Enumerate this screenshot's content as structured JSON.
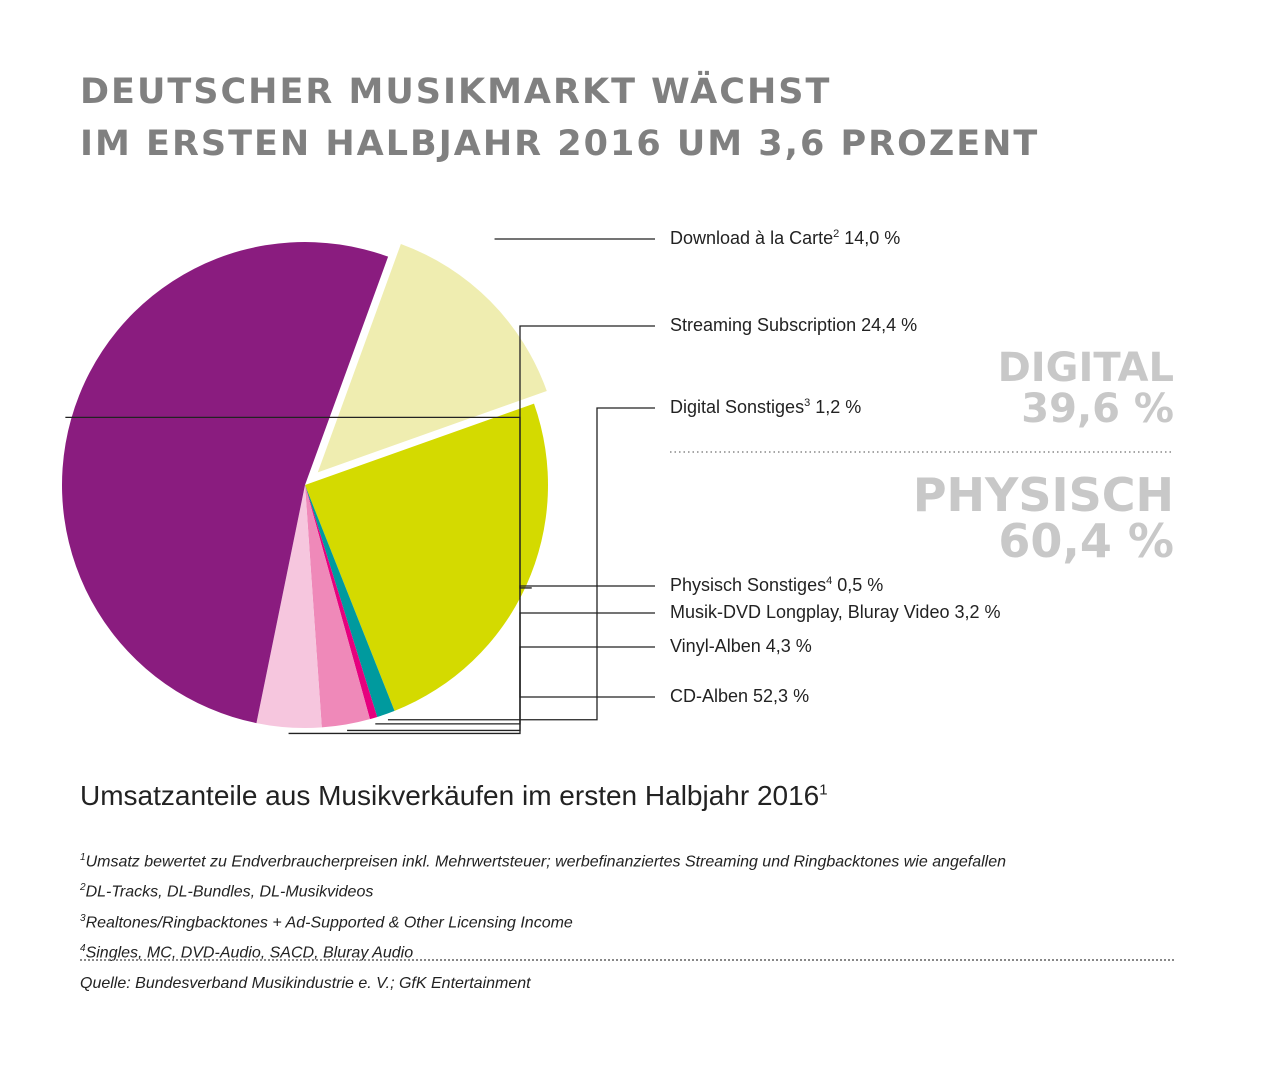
{
  "title": {
    "line1": "DEUTSCHER MUSIKMARKT WÄCHST",
    "line2": "IM ERSTEN HALBJAHR 2016 UM 3,6 PROZENT"
  },
  "chart_data": {
    "type": "pie",
    "title": "Umsatzanteile aus Musikverkäufen im ersten Halbjahr 2016",
    "title_footnote": "1",
    "unit": "%",
    "slices": [
      {
        "name": "Download à la Carte",
        "footnote": "2",
        "value": 14.0,
        "value_label": "14,0 %",
        "group": "digital",
        "color": "#efedb0",
        "exploded": true
      },
      {
        "name": "Streaming Subscription",
        "footnote": "",
        "value": 24.4,
        "value_label": "24,4 %",
        "group": "digital",
        "color": "#d4da00",
        "exploded": false
      },
      {
        "name": "Digital Sonstiges",
        "footnote": "3",
        "value": 1.2,
        "value_label": "1,2 %",
        "group": "digital",
        "color": "#009a9e",
        "exploded": false
      },
      {
        "name": "Physisch Sonstiges",
        "footnote": "4",
        "value": 0.5,
        "value_label": "0,5 %",
        "group": "physisch",
        "color": "#e6007e",
        "exploded": false
      },
      {
        "name": "Musik-DVD Longplay, Bluray Video",
        "footnote": "",
        "value": 3.2,
        "value_label": "3,2 %",
        "group": "physisch",
        "color": "#ef89b9",
        "exploded": false
      },
      {
        "name": "Vinyl-Alben",
        "footnote": "",
        "value": 4.3,
        "value_label": "4,3 %",
        "group": "physisch",
        "color": "#f6c6de",
        "exploded": false
      },
      {
        "name": "CD-Alben",
        "footnote": "",
        "value": 52.3,
        "value_label": "52,3 %",
        "group": "physisch",
        "color": "#8a1c7f",
        "exploded": false
      }
    ],
    "groups": [
      {
        "name": "DIGITAL",
        "value_label": "39,6 %"
      },
      {
        "name": "PHYSISCH",
        "value_label": "60,4 %"
      }
    ]
  },
  "footnotes": [
    {
      "mark": "1",
      "text": "Umsatz bewertet zu Endverbraucherpreisen inkl. Mehrwertsteuer; werbefinanziertes Streaming und Ringbacktones wie angefallen"
    },
    {
      "mark": "2",
      "text": "DL-Tracks, DL-Bundles, DL-Musikvideos"
    },
    {
      "mark": "3",
      "text": "Realtones/Ringbacktones + Ad-Supported & Other Licensing Income"
    },
    {
      "mark": "4",
      "text": "Singles, MC, DVD-Audio, SACD, Bluray Audio"
    }
  ],
  "source": "Quelle: Bundesverband Musikindustrie e. V.; GfK Entertainment"
}
